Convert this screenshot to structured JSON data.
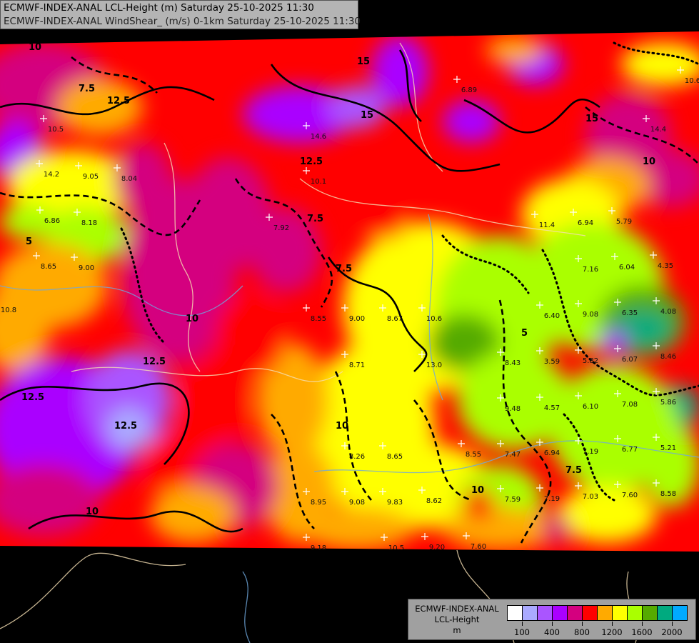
{
  "title": {
    "line1": "ECMWF-INDEX-ANAL LCL-Height (m) Saturday 25-10-2025 11:30",
    "line2": "ECMWF-INDEX-ANAL WindShear_ (m/s) 0-1km Saturday 25-10-2025 11:30"
  },
  "legend": {
    "model": "ECMWF-INDEX-ANAL",
    "parameter": "LCL-Height",
    "unit": "m",
    "colors": [
      "#ffffff",
      "#aaaaff",
      "#aa55ff",
      "#aa00ff",
      "#d4007f",
      "#ff0000",
      "#ffaa00",
      "#ffff00",
      "#aaff00",
      "#55aa00",
      "#00aa7f",
      "#00aaff"
    ],
    "tick_labels": [
      "100",
      "400",
      "800",
      "1200",
      "1600",
      "2000"
    ]
  },
  "map": {
    "background": "#000000",
    "border_color": "#f5deb3",
    "river_color": "#6fa8dc",
    "station_values": [
      "10.5",
      "14.2",
      "9.05",
      "8.04",
      "6.86",
      "8.18",
      "8.65",
      "9.00",
      "10.8",
      "14.6",
      "10.1",
      "7.92",
      "8.55",
      "9.00",
      "8.67",
      "10.6",
      "8.71",
      "13.0",
      "8.43",
      "3.59",
      "5.82",
      "6.07",
      "8.46",
      "9.48",
      "4.57",
      "6.10",
      "7.08",
      "5.86",
      "8.26",
      "8.65",
      "8.55",
      "7.47",
      "6.94",
      "7.19",
      "6.77",
      "5.21",
      "8.95",
      "9.08",
      "9.83",
      "8.62",
      "7.59",
      "7.19",
      "7.03",
      "7.60",
      "8.58",
      "11.4",
      "6.94",
      "5.79",
      "7.16",
      "6.04",
      "4.35",
      "6.40",
      "9.08",
      "6.35",
      "4.08",
      "6.89",
      "14.4",
      "10.6",
      "9.18",
      "10.5",
      "9.20",
      "7.60"
    ],
    "contour_labels": [
      "10",
      "12.5",
      "15",
      "7.5",
      "5",
      "12.5",
      "10",
      "7.5",
      "15",
      "12.5",
      "10",
      "7.5",
      "5",
      "10",
      "12.5",
      "15",
      "10",
      "7.5",
      "10",
      "12.5"
    ]
  }
}
